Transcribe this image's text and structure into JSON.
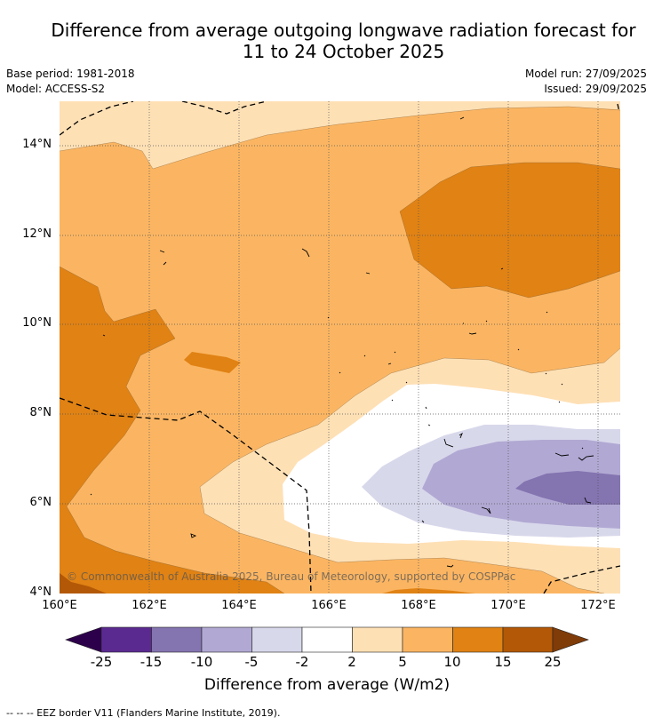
{
  "title_line1": "Difference from average outgoing longwave radiation forecast for",
  "title_line2": "11 to 24 October 2025",
  "base_period": "Base period: 1981-2018",
  "model": "Model: ACCESS-S2",
  "model_run": "Model run: 27/09/2025",
  "issued": "Issued: 29/09/2025",
  "y_ticks": [
    "14°N",
    "12°N",
    "10°N",
    "8°N",
    "6°N",
    "4°N"
  ],
  "x_ticks": [
    "160°E",
    "162°E",
    "164°E",
    "166°E",
    "168°E",
    "170°E",
    "172°E"
  ],
  "copyright": "© Commonwealth of Australia 2025, Bureau of Meteorology, supported by COSPPac",
  "colorbar": {
    "ticks": [
      "-25",
      "-15",
      "-10",
      "-5",
      "-2",
      "2",
      "5",
      "10",
      "15",
      "25"
    ],
    "colors": [
      "#5b2a91",
      "#8474b0",
      "#b1a9d3",
      "#d8d8eb",
      "#ffffff",
      "#fee0b5",
      "#fbb562",
      "#e08214",
      "#b35806"
    ],
    "min_extend_color": "#2d004b",
    "max_extend_color": "#7f3b08",
    "label": "Difference from average (W/m2)"
  },
  "footer": "--  --  -- EEZ border V11 (Flanders Marine Institute, 2019)."
}
